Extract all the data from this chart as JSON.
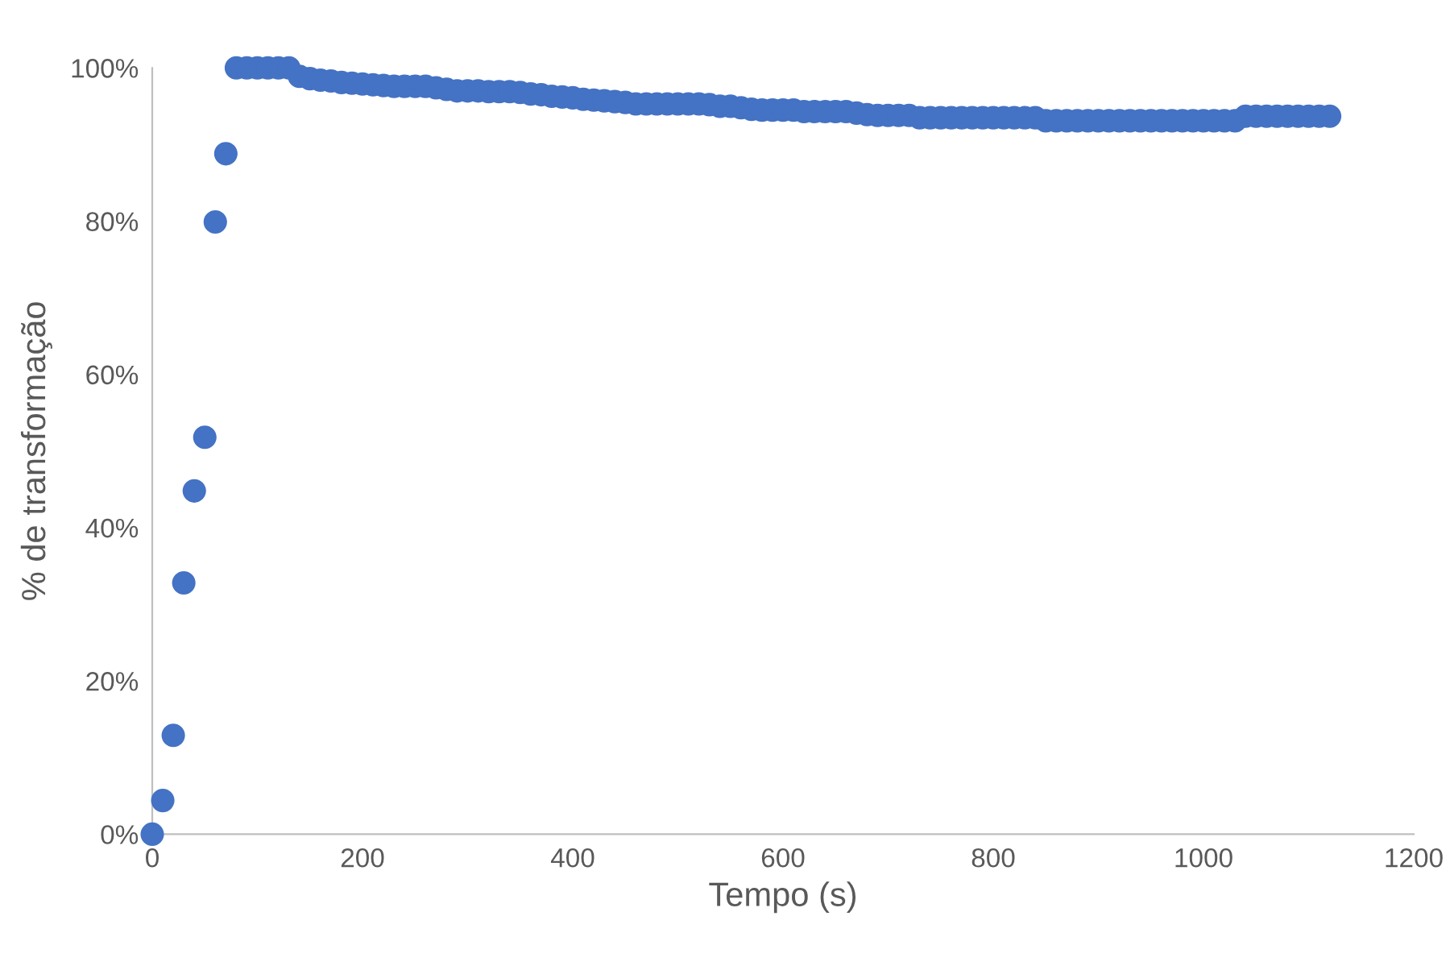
{
  "chart_data": {
    "type": "scatter",
    "xlabel": "Tempo (s)",
    "ylabel": "% de transformação",
    "marker": "circle",
    "grid": false,
    "x": [
      0,
      10,
      20,
      30,
      40,
      50,
      60,
      70,
      80,
      90,
      100,
      110,
      120,
      130,
      140,
      150,
      160,
      170,
      180,
      190,
      200,
      210,
      220,
      230,
      240,
      250,
      260,
      270,
      280,
      290,
      300,
      310,
      320,
      330,
      340,
      350,
      360,
      370,
      380,
      390,
      400,
      410,
      420,
      430,
      440,
      450,
      460,
      470,
      480,
      490,
      500,
      510,
      520,
      530,
      540,
      550,
      560,
      570,
      580,
      590,
      600,
      610,
      620,
      630,
      640,
      650,
      660,
      670,
      680,
      690,
      700,
      710,
      720,
      730,
      740,
      750,
      760,
      770,
      780,
      790,
      800,
      810,
      820,
      830,
      840,
      850,
      860,
      870,
      880,
      890,
      900,
      910,
      920,
      930,
      940,
      950,
      960,
      970,
      980,
      990,
      1000,
      1010,
      1020,
      1030,
      1040,
      1050,
      1060,
      1070,
      1080,
      1090,
      1100,
      1110,
      1120
    ],
    "series": [
      {
        "color": "#4472c4",
        "values": [
          0,
          4.4,
          12.9,
          32.8,
          44.8,
          51.8,
          79.9,
          88.8,
          100,
          100,
          100,
          100,
          100,
          100,
          98.9,
          98.6,
          98.4,
          98.3,
          98.1,
          98.0,
          97.9,
          97.8,
          97.7,
          97.6,
          97.6,
          97.6,
          97.6,
          97.4,
          97.2,
          97.0,
          97.0,
          97.0,
          96.9,
          96.9,
          96.9,
          96.8,
          96.6,
          96.5,
          96.3,
          96.2,
          96.1,
          95.9,
          95.8,
          95.7,
          95.6,
          95.5,
          95.3,
          95.3,
          95.3,
          95.3,
          95.3,
          95.3,
          95.3,
          95.2,
          95.0,
          95.0,
          94.8,
          94.6,
          94.5,
          94.5,
          94.5,
          94.5,
          94.3,
          94.3,
          94.3,
          94.3,
          94.3,
          94.1,
          93.9,
          93.8,
          93.8,
          93.8,
          93.8,
          93.5,
          93.5,
          93.5,
          93.5,
          93.5,
          93.5,
          93.5,
          93.5,
          93.5,
          93.5,
          93.5,
          93.5,
          93.1,
          93.1,
          93.1,
          93.1,
          93.1,
          93.1,
          93.1,
          93.1,
          93.1,
          93.1,
          93.1,
          93.1,
          93.1,
          93.1,
          93.1,
          93.1,
          93.1,
          93.1,
          93.1,
          93.7,
          93.7,
          93.7,
          93.7,
          93.7,
          93.7,
          93.7,
          93.7,
          93.7
        ]
      }
    ],
    "xlim": [
      0,
      1200
    ],
    "xticks": [
      0,
      200,
      400,
      600,
      800,
      1000,
      1200
    ],
    "ylim": [
      0,
      100
    ],
    "yticks": [
      {
        "value": 0,
        "label": "0%"
      },
      {
        "value": 20,
        "label": "20%"
      },
      {
        "value": 40,
        "label": "40%"
      },
      {
        "value": 60,
        "label": "60%"
      },
      {
        "value": 80,
        "label": "80%"
      },
      {
        "value": 100,
        "label": "100%"
      }
    ]
  }
}
